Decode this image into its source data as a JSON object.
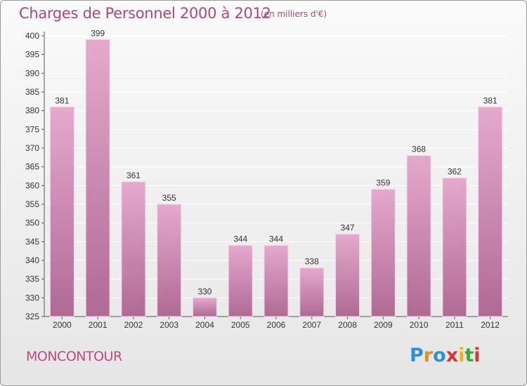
{
  "title": "Charges de Personnel 2000 à 2012",
  "subtitle": "(en milliers d'€)",
  "commune": "MONCONTOUR",
  "logo": {
    "text": "Proxiti",
    "letter_colors": [
      "#2e8fd6",
      "#f08a1c",
      "#2e8fd6",
      "#e03030",
      "#f0b418",
      "#3aa935",
      "#e03030"
    ]
  },
  "colors": {
    "title": "#b0477a",
    "bar_top": "#e5a9cd",
    "bar_bottom": "#b06a94",
    "axis": "#555555",
    "grid": "#ffffff"
  },
  "chart_data": {
    "type": "bar",
    "categories": [
      "2000",
      "2001",
      "2002",
      "2003",
      "2004",
      "2005",
      "2006",
      "2007",
      "2008",
      "2009",
      "2010",
      "2011",
      "2012"
    ],
    "values": [
      381,
      399,
      361,
      355,
      330,
      344,
      344,
      338,
      347,
      359,
      368,
      362,
      381
    ],
    "ylim": [
      325,
      400
    ],
    "yticks": [
      325,
      330,
      335,
      340,
      345,
      350,
      355,
      360,
      365,
      370,
      375,
      380,
      385,
      390,
      395,
      400
    ],
    "grid": true,
    "data_labels": true
  }
}
